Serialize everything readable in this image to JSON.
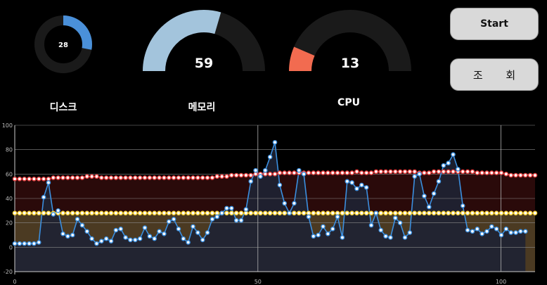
{
  "gauges": {
    "disk": {
      "label": "디스크",
      "value": "28",
      "percent": 28,
      "color": "#4a90d9"
    },
    "memory": {
      "label": "메모리",
      "value": "59",
      "percent": 59,
      "color": "#a3c4dc"
    },
    "cpu": {
      "label": "CPU",
      "value": "13",
      "percent": 13,
      "color": "#f26b50"
    }
  },
  "buttons": {
    "start": "Start",
    "query": "조 회"
  },
  "colors": {
    "track": "#1a1a1a",
    "background": "#000000"
  },
  "chart_data": {
    "type": "line",
    "xlim": [
      0,
      107
    ],
    "ylim": [
      -20,
      100
    ],
    "x_ticks": [
      "0",
      "50",
      "100"
    ],
    "y_ticks": [
      "-20",
      "0",
      "20",
      "40",
      "60",
      "80",
      "100"
    ],
    "grid": true,
    "series": [
      {
        "name": "",
        "color": "#e23b3b",
        "fill": "#2a0a0a",
        "values": [
          56,
          56,
          56,
          56,
          56,
          56,
          56,
          56,
          57,
          57,
          57,
          57,
          57,
          57,
          57,
          58,
          58,
          58,
          57,
          57,
          57,
          57,
          57,
          57,
          57,
          57,
          57,
          57,
          57,
          57,
          57,
          57,
          57,
          57,
          57,
          57,
          57,
          57,
          57,
          57,
          57,
          57,
          58,
          58,
          58,
          59,
          59,
          59,
          59,
          59,
          60,
          60,
          60,
          60,
          60,
          61,
          61,
          61,
          61,
          61,
          61,
          61,
          61,
          61,
          61,
          61,
          61,
          61,
          61,
          61,
          61,
          62,
          61,
          61,
          61,
          62,
          62,
          62,
          62,
          62,
          62,
          62,
          62,
          62,
          61,
          61,
          61,
          62,
          62,
          62,
          62,
          62,
          62,
          62,
          62,
          62,
          61,
          61,
          61,
          61,
          61,
          61,
          60,
          59,
          59,
          59,
          59,
          59,
          59
        ]
      },
      {
        "name": "",
        "color": "#f5d032",
        "fill": "#4b3a22",
        "values": [
          28,
          28,
          28,
          28,
          28,
          28,
          28,
          28,
          28,
          28,
          28,
          28,
          28,
          28,
          28,
          28,
          28,
          28,
          28,
          28,
          28,
          28,
          28,
          28,
          28,
          28,
          28,
          28,
          28,
          28,
          28,
          28,
          28,
          28,
          28,
          28,
          28,
          28,
          28,
          28,
          28,
          28,
          28,
          28,
          28,
          28,
          28,
          28,
          28,
          28,
          28,
          28,
          28,
          28,
          28,
          28,
          28,
          28,
          28,
          28,
          28,
          28,
          28,
          28,
          28,
          28,
          28,
          28,
          28,
          28,
          28,
          28,
          28,
          28,
          28,
          28,
          28,
          28,
          28,
          28,
          28,
          28,
          28,
          28,
          28,
          28,
          28,
          28,
          28,
          28,
          28,
          28,
          28,
          28,
          28,
          28,
          28,
          28,
          28,
          28,
          28,
          28,
          28,
          28,
          28,
          28,
          28,
          28,
          28
        ]
      },
      {
        "name": "",
        "color": "#3b8fdf",
        "fill": "#1e2233",
        "values": [
          3,
          3,
          3,
          3,
          3,
          4,
          41,
          53,
          27,
          30,
          11,
          9,
          10,
          23,
          18,
          13,
          7,
          3,
          5,
          7,
          5,
          14,
          15,
          8,
          6,
          6,
          7,
          16,
          9,
          7,
          13,
          11,
          21,
          23,
          15,
          7,
          4,
          17,
          12,
          6,
          12,
          23,
          25,
          28,
          32,
          32,
          22,
          22,
          31,
          54,
          63,
          58,
          63,
          74,
          86,
          51,
          36,
          28,
          36,
          63,
          60,
          25,
          9,
          10,
          17,
          11,
          15,
          25,
          8,
          54,
          53,
          48,
          51,
          49,
          18,
          28,
          14,
          9,
          8,
          24,
          20,
          8,
          12,
          58,
          60,
          42,
          33,
          44,
          54,
          67,
          69,
          76,
          64,
          34,
          14,
          13,
          15,
          11,
          13,
          17,
          15,
          10,
          15,
          12,
          12,
          13,
          13
        ]
      }
    ]
  }
}
